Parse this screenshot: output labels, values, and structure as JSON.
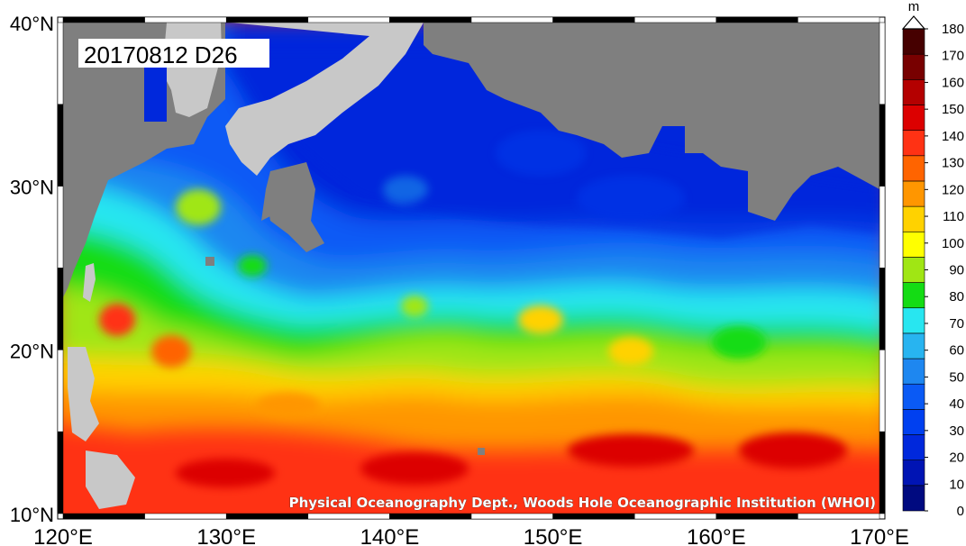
{
  "stamp": "20170812 D26",
  "credit": "Physical Oceanography Dept., Woods Hole Oceanographic Institution (WHOI)",
  "lat_labels": [
    "40°N",
    "30°N",
    "20°N",
    "10°N"
  ],
  "lon_labels": [
    "120°E",
    "130°E",
    "140°E",
    "150°E",
    "160°E",
    "170°E"
  ],
  "colorbar": {
    "unit": "m",
    "ticks": [
      "0",
      "10",
      "20",
      "30",
      "40",
      "50",
      "60",
      "70",
      "80",
      "90",
      "100",
      "110",
      "120",
      "130",
      "140",
      "150",
      "160",
      "170",
      "180"
    ],
    "colors": [
      "#000a80",
      "#0014b4",
      "#0028dc",
      "#0040f0",
      "#0a5af5",
      "#1e87f0",
      "#28b4f0",
      "#28e6f0",
      "#14dc14",
      "#a0e614",
      "#ffff00",
      "#ffd200",
      "#ff9600",
      "#ff6400",
      "#ff3214",
      "#dc0000",
      "#b40000",
      "#780000",
      "#460000"
    ]
  },
  "colors": {
    "land": "#7f7f7f",
    "frame": "#000000"
  }
}
